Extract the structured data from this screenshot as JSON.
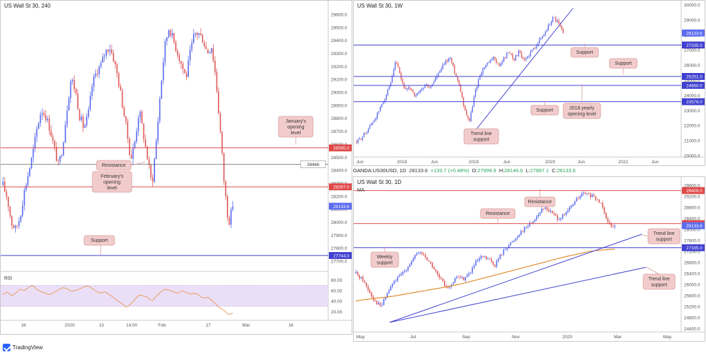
{
  "brand": {
    "name": "TradingView"
  },
  "colors": {
    "candle_up": "#5b6cf0",
    "candle_down": "#e05a5a",
    "red_line": "#e04848",
    "blue_line": "#3f3fd0",
    "annotation_bg": "#f2cccc",
    "annotation_border": "#d89a9a",
    "ma_line": "#e08a2a",
    "rsi_line": "#e8954a",
    "rsi_band": "#eadff7"
  },
  "info_bar": {
    "symbol": "OANDA:US30USD, 1D",
    "last": "28133.6",
    "change": "+133.7 (+0.48%)",
    "o_label": "O:",
    "o": "27999.9",
    "h_label": "H:",
    "h": "28146.6",
    "l_label": "L:",
    "l": "27897.1",
    "c_label": "C:",
    "c": "28133.6"
  },
  "chart_data": [
    {
      "id": "h4",
      "type": "candlestick",
      "title": "US Wall St 30, 240",
      "ylim": [
        27700,
        29650
      ],
      "y_ticks": [
        "29600.0",
        "29500.0",
        "29400.0",
        "29300.0",
        "29200.0",
        "29100.0",
        "29000.0",
        "28900.0",
        "28800.0",
        "28700.0",
        "28600.0",
        "28500.0",
        "28400.0",
        "28300.0",
        "28200.0",
        "28100.0",
        "28000.0",
        "27900.0",
        "27800.0",
        "27700.0"
      ],
      "x_ticks": [
        "16",
        "2020",
        "13",
        "14:00",
        "Feb",
        "17",
        "Mar",
        "16"
      ],
      "close_path": [
        28300,
        28200,
        28000,
        27950,
        28050,
        28250,
        28400,
        28550,
        28750,
        28900,
        28850,
        28750,
        28600,
        28450,
        28600,
        28900,
        29150,
        29050,
        28850,
        28750,
        28850,
        29100,
        29200,
        29250,
        29350,
        29400,
        29300,
        29150,
        28950,
        28750,
        28500,
        28650,
        28900,
        28700,
        28500,
        28300,
        28650,
        29050,
        29400,
        29550,
        29450,
        29350,
        29250,
        29150,
        29350,
        29500,
        29500,
        29450,
        29350,
        29400,
        29150,
        28750,
        28300,
        28000,
        28133.6
      ],
      "levels": [
        {
          "value": 28595.0,
          "label": "28595.0",
          "kind": "red"
        },
        {
          "value": 28466,
          "label": "28466",
          "kind": "grey"
        },
        {
          "value": 28287.0,
          "label": "28287.0",
          "kind": "red"
        },
        {
          "value": 28133.6,
          "label": "28133.6",
          "kind": "last"
        },
        {
          "value": 27744.0,
          "label": "27744.0",
          "kind": "blue"
        }
      ],
      "annotations": [
        "January's opening level",
        "Resistance",
        "February's opening level",
        "Support"
      ],
      "rsi": {
        "label": "RSI",
        "ylim": [
          10,
          90
        ],
        "y_ticks": [
          "80.00",
          "60.00",
          "40.00",
          "20.00"
        ],
        "band": [
          30,
          70
        ],
        "values": [
          52,
          58,
          50,
          55,
          63,
          60,
          66,
          70,
          62,
          58,
          55,
          52,
          57,
          61,
          66,
          64,
          59,
          60,
          63,
          67,
          69,
          64,
          58,
          55,
          58,
          52,
          47,
          40,
          35,
          28,
          34,
          43,
          52,
          50,
          47,
          40,
          49,
          57,
          63,
          61,
          58,
          55,
          60,
          57,
          53,
          55,
          52,
          45,
          48,
          42,
          34,
          27,
          22,
          14,
          17
        ]
      }
    },
    {
      "id": "weekly",
      "type": "candlestick",
      "title": "US Wall St 30, 1W",
      "ylim": [
        20000,
        30000
      ],
      "y_ticks": [
        "30000.0",
        "29000.0",
        "28000.0",
        "27000.0",
        "26000.0",
        "25000.0",
        "24000.0",
        "23000.0",
        "22000.0",
        "21000.0",
        "20000.0"
      ],
      "x_ticks": [
        "Jun",
        "2018",
        "Jun",
        "2019",
        "Jun",
        "2020",
        "Jun",
        "2021",
        "Jun"
      ],
      "close_path": [
        20900,
        21200,
        21600,
        22100,
        22600,
        23300,
        24000,
        24800,
        26300,
        25100,
        24300,
        24500,
        23900,
        24300,
        24700,
        24500,
        25100,
        25600,
        26200,
        26500,
        25500,
        24600,
        23000,
        22300,
        24100,
        25300,
        25900,
        26200,
        26500,
        25900,
        26500,
        26900,
        26400,
        26900,
        26200,
        26700,
        27100,
        27600,
        28000,
        28600,
        29200,
        28800,
        28133.6
      ],
      "levels": [
        {
          "value": 28133.6,
          "label": "28133.6",
          "kind": "last"
        },
        {
          "value": 27335.0,
          "label": "27335.0",
          "kind": "blue"
        },
        {
          "value": 25251.0,
          "label": "25251.0",
          "kind": "blue"
        },
        {
          "value": 24660.0,
          "label": "24660.0",
          "kind": "blue"
        },
        {
          "value": 23578.0,
          "label": "23578.0",
          "kind": "blue"
        }
      ],
      "annotations": [
        "Support",
        "Support",
        "Support",
        "2018 yearly opening level",
        "Trend line support"
      ]
    },
    {
      "id": "daily",
      "type": "candlestick",
      "title": "US Wall St 30, 1D",
      "ylim": [
        24400,
        29600
      ],
      "y_ticks": [
        "29600.0",
        "29200.0",
        "28800.0",
        "28400.0",
        "28000.0",
        "27600.0",
        "27200.0",
        "26800.0",
        "26400.0",
        "26000.0",
        "25600.0",
        "25200.0",
        "24800.0",
        "24400.0"
      ],
      "x_ticks": [
        "May",
        "Jul",
        "Sep",
        "Nov",
        "2020",
        "Mar",
        "May"
      ],
      "ma_label": "MA",
      "close_path": [
        26400,
        26200,
        25800,
        25400,
        25200,
        25700,
        26100,
        26300,
        26600,
        26900,
        27200,
        27000,
        26700,
        26300,
        26000,
        25900,
        26300,
        26200,
        26400,
        26800,
        27000,
        26900,
        26700,
        27100,
        27400,
        27600,
        27900,
        28100,
        28300,
        28600,
        28800,
        28600,
        28400,
        28500,
        28800,
        29100,
        29300,
        29250,
        29100,
        28900,
        28200,
        28133.6
      ],
      "ma_path": [
        25400,
        25440,
        25470,
        25500,
        25520,
        25550,
        25580,
        25620,
        25660,
        25700,
        25740,
        25780,
        25820,
        25860,
        25900,
        25940,
        25990,
        26040,
        26100,
        26160,
        26220,
        26280,
        26340,
        26400,
        26460,
        26520,
        26580,
        26640,
        26700,
        26760,
        26820,
        26880,
        26940,
        27000,
        27050,
        27100,
        27150,
        27200,
        27230,
        27250,
        27270,
        27280
      ],
      "levels": [
        {
          "value": 29409.0,
          "label": "29409.0",
          "kind": "red"
        },
        {
          "value": 28208.0,
          "label": "28208.0",
          "kind": "red"
        },
        {
          "value": 28133.6,
          "label": "28133.6",
          "kind": "last"
        },
        {
          "value": 27335.0,
          "label": "27335.0",
          "kind": "blue"
        }
      ],
      "annotations": [
        "Resistance",
        "Resistance",
        "Weekly support",
        "Trend line support",
        "Trend line support"
      ]
    }
  ]
}
